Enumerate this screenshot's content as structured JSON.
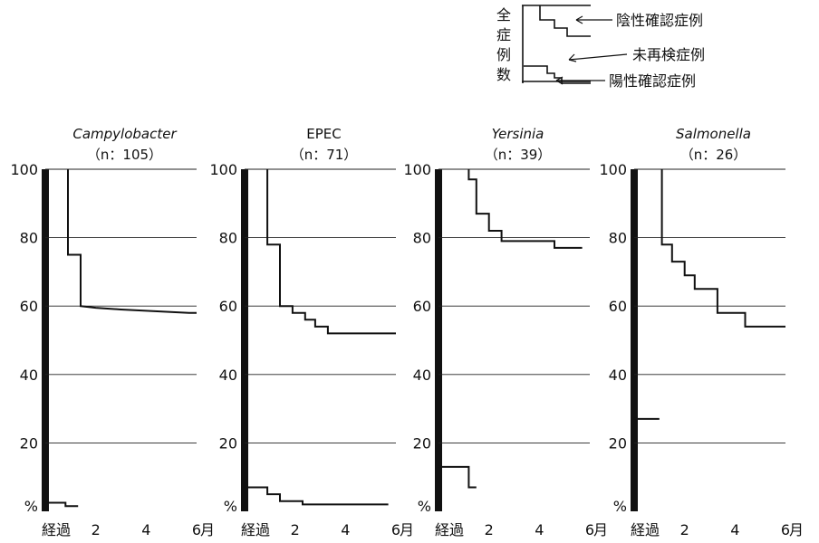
{
  "legend": {
    "vertical_label": "全症例数",
    "negative_label": "陰性確認症例",
    "unchecked_label": "未再検症例",
    "positive_label": "陽性確認症例"
  },
  "chart_data": [
    {
      "type": "line",
      "title": "Campylobacter",
      "subtitle": "（n：105）",
      "title_italic": true,
      "xlabel": "経過",
      "xunit": "月",
      "ylabel": "%",
      "xlim": [
        0,
        6
      ],
      "ylim": [
        0,
        100
      ],
      "x_ticks": [
        2,
        4,
        6
      ],
      "y_ticks": [
        20,
        40,
        60,
        80,
        100
      ],
      "grid": true,
      "series": [
        {
          "role": "negative",
          "points": [
            [
              0.9,
              100
            ],
            [
              0.9,
              75
            ],
            [
              1.4,
              75
            ],
            [
              1.4,
              60
            ],
            [
              2.0,
              59.5
            ],
            [
              3.0,
              59
            ],
            [
              5.7,
              58
            ],
            [
              6,
              58
            ]
          ]
        },
        {
          "role": "positive",
          "points": [
            [
              0,
              2.5
            ],
            [
              0.8,
              2.5
            ],
            [
              0.8,
              1.5
            ],
            [
              1.3,
              1.5
            ]
          ]
        }
      ]
    },
    {
      "type": "line",
      "title": "EPEC",
      "subtitle": "（n：71）",
      "title_italic": false,
      "xlabel": "経過",
      "xunit": "月",
      "ylabel": "%",
      "xlim": [
        0,
        6
      ],
      "ylim": [
        0,
        100
      ],
      "x_ticks": [
        2,
        4,
        6
      ],
      "y_ticks": [
        20,
        40,
        60,
        80,
        100
      ],
      "grid": true,
      "series": [
        {
          "role": "negative",
          "points": [
            [
              0.9,
              100
            ],
            [
              0.9,
              78
            ],
            [
              1.4,
              78
            ],
            [
              1.4,
              60
            ],
            [
              1.9,
              60
            ],
            [
              1.9,
              58
            ],
            [
              2.4,
              58
            ],
            [
              2.4,
              56
            ],
            [
              2.8,
              56
            ],
            [
              2.8,
              54
            ],
            [
              3.3,
              54
            ],
            [
              3.3,
              52
            ],
            [
              6,
              52
            ]
          ]
        },
        {
          "role": "positive",
          "points": [
            [
              0,
              7
            ],
            [
              0.9,
              7
            ],
            [
              0.9,
              5
            ],
            [
              1.4,
              5
            ],
            [
              1.4,
              3
            ],
            [
              2.3,
              3
            ],
            [
              2.3,
              2
            ],
            [
              5.7,
              2
            ]
          ]
        }
      ]
    },
    {
      "type": "line",
      "title": "Yersinia",
      "subtitle": "（n：39）",
      "title_italic": true,
      "xlabel": "経過",
      "xunit": "月",
      "ylabel": "%",
      "xlim": [
        0,
        6
      ],
      "ylim": [
        0,
        100
      ],
      "x_ticks": [
        2,
        4,
        6
      ],
      "y_ticks": [
        20,
        40,
        60,
        80,
        100
      ],
      "grid": true,
      "series": [
        {
          "role": "negative",
          "points": [
            [
              1.2,
              100
            ],
            [
              1.2,
              97
            ],
            [
              1.5,
              97
            ],
            [
              1.5,
              87
            ],
            [
              2.0,
              87
            ],
            [
              2.0,
              82
            ],
            [
              2.5,
              82
            ],
            [
              2.5,
              79
            ],
            [
              4.6,
              79
            ],
            [
              4.6,
              77
            ],
            [
              5.7,
              77
            ]
          ]
        },
        {
          "role": "positive",
          "points": [
            [
              0,
              13
            ],
            [
              1.2,
              13
            ],
            [
              1.2,
              7
            ],
            [
              1.5,
              7
            ]
          ]
        }
      ]
    },
    {
      "type": "line",
      "title": "Salmonella",
      "subtitle": "（n：26）",
      "title_italic": true,
      "xlabel": "経過",
      "xunit": "月",
      "ylabel": "%",
      "xlim": [
        0,
        6
      ],
      "ylim": [
        0,
        100
      ],
      "x_ticks": [
        2,
        4,
        6
      ],
      "y_ticks": [
        20,
        40,
        60,
        80,
        100
      ],
      "grid": true,
      "series": [
        {
          "role": "negative",
          "points": [
            [
              1.1,
              100
            ],
            [
              1.1,
              78
            ],
            [
              1.5,
              78
            ],
            [
              1.5,
              73
            ],
            [
              2.0,
              73
            ],
            [
              2.0,
              69
            ],
            [
              2.4,
              69
            ],
            [
              2.4,
              65
            ],
            [
              3.3,
              65
            ],
            [
              3.3,
              58
            ],
            [
              4.4,
              58
            ],
            [
              4.4,
              54
            ],
            [
              6,
              54
            ]
          ]
        },
        {
          "role": "positive",
          "points": [
            [
              0,
              27
            ],
            [
              1.0,
              27
            ]
          ]
        }
      ]
    }
  ]
}
